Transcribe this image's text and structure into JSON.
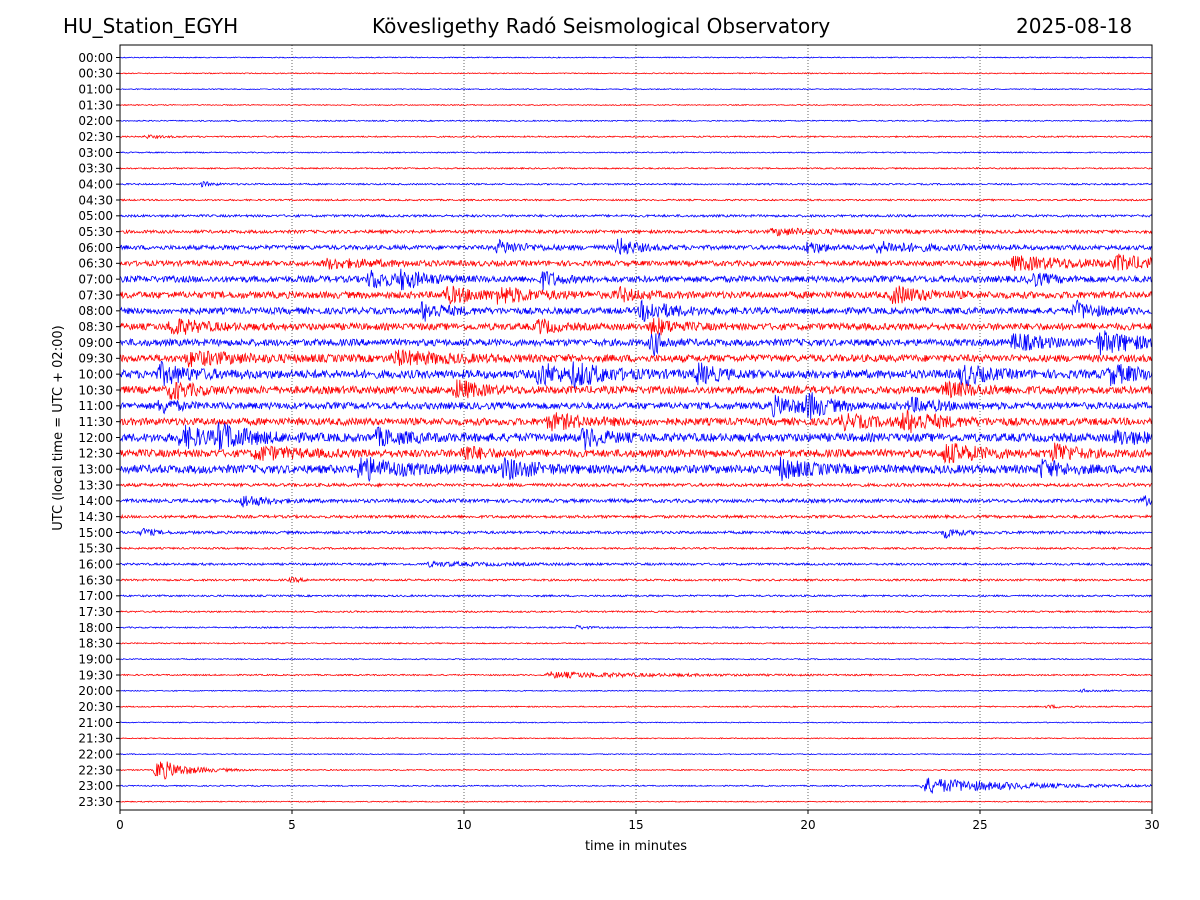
{
  "header": {
    "station": "HU_Station_EGYH",
    "title": "Kövesligethy Radó Seismological Observatory",
    "date": "2025-08-18"
  },
  "chart_data": {
    "type": "line",
    "title": "Kövesligethy Radó Seismological Observatory",
    "xlabel": "time in minutes",
    "ylabel": "UTC (local time = UTC + 02:00)",
    "xlim": [
      0,
      30
    ],
    "x_ticks": [
      "0",
      "5",
      "10",
      "15",
      "20",
      "25",
      "30"
    ],
    "grid": "vertical dotted at 5-minute intervals",
    "colors": {
      "even_rows": "#0000ff",
      "odd_rows": "#ff0000"
    },
    "rows": [
      {
        "label": "00:00",
        "noise": 0.5,
        "events": []
      },
      {
        "label": "00:30",
        "noise": 0.5,
        "events": []
      },
      {
        "label": "01:00",
        "noise": 0.5,
        "events": []
      },
      {
        "label": "01:30",
        "noise": 0.5,
        "events": []
      },
      {
        "label": "02:00",
        "noise": 0.6,
        "events": []
      },
      {
        "label": "02:30",
        "noise": 0.7,
        "events": [
          {
            "t": 0.8,
            "amp": 1.5,
            "dur": 0.5
          }
        ]
      },
      {
        "label": "03:00",
        "noise": 0.6,
        "events": []
      },
      {
        "label": "03:30",
        "noise": 0.7,
        "events": []
      },
      {
        "label": "04:00",
        "noise": 0.8,
        "events": [
          {
            "t": 2.4,
            "amp": 2.5,
            "dur": 0.3
          }
        ]
      },
      {
        "label": "04:30",
        "noise": 0.8,
        "events": []
      },
      {
        "label": "05:00",
        "noise": 1.2,
        "events": []
      },
      {
        "label": "05:30",
        "noise": 1.6,
        "events": [
          {
            "t": 19,
            "amp": 3,
            "dur": 2
          }
        ]
      },
      {
        "label": "06:00",
        "noise": 2.2,
        "events": [
          {
            "t": 11,
            "amp": 6,
            "dur": 0.8
          },
          {
            "t": 14.5,
            "amp": 9,
            "dur": 0.5
          },
          {
            "t": 20,
            "amp": 6,
            "dur": 0.5
          },
          {
            "t": 22,
            "amp": 5,
            "dur": 1.5
          }
        ]
      },
      {
        "label": "06:30",
        "noise": 2.6,
        "events": [
          {
            "t": 6,
            "amp": 4,
            "dur": 1.5
          },
          {
            "t": 26,
            "amp": 6,
            "dur": 2
          },
          {
            "t": 29,
            "amp": 6,
            "dur": 1
          }
        ]
      },
      {
        "label": "07:00",
        "noise": 3.2,
        "events": [
          {
            "t": 7.3,
            "amp": 9,
            "dur": 0.6
          },
          {
            "t": 8.2,
            "amp": 8,
            "dur": 0.6
          },
          {
            "t": 12.3,
            "amp": 8,
            "dur": 0.4
          },
          {
            "t": 26.5,
            "amp": 6,
            "dur": 0.5
          }
        ]
      },
      {
        "label": "07:30",
        "noise": 3.4,
        "events": [
          {
            "t": 9.5,
            "amp": 7,
            "dur": 1
          },
          {
            "t": 11,
            "amp": 6,
            "dur": 1
          },
          {
            "t": 14.5,
            "amp": 6,
            "dur": 0.5
          },
          {
            "t": 22.5,
            "amp": 8,
            "dur": 0.8
          }
        ]
      },
      {
        "label": "08:00",
        "noise": 3.2,
        "events": [
          {
            "t": 8.8,
            "amp": 9,
            "dur": 0.6
          },
          {
            "t": 15.2,
            "amp": 10,
            "dur": 0.8
          },
          {
            "t": 27.8,
            "amp": 8,
            "dur": 0.6
          }
        ]
      },
      {
        "label": "08:30",
        "noise": 3.4,
        "events": [
          {
            "t": 1.5,
            "amp": 8,
            "dur": 0.8
          },
          {
            "t": 12.2,
            "amp": 7,
            "dur": 0.4
          },
          {
            "t": 15.5,
            "amp": 8,
            "dur": 0.6
          }
        ]
      },
      {
        "label": "09:00",
        "noise": 3.4,
        "events": [
          {
            "t": 15.5,
            "amp": 12,
            "dur": 0.3
          },
          {
            "t": 26,
            "amp": 8,
            "dur": 0.8
          },
          {
            "t": 28.5,
            "amp": 10,
            "dur": 1.2
          }
        ]
      },
      {
        "label": "09:30",
        "noise": 3.6,
        "events": [
          {
            "t": 2,
            "amp": 6,
            "dur": 1.5
          },
          {
            "t": 8,
            "amp": 6,
            "dur": 1.5
          }
        ]
      },
      {
        "label": "10:00",
        "noise": 4.2,
        "events": [
          {
            "t": 1.2,
            "amp": 9,
            "dur": 0.8
          },
          {
            "t": 12.2,
            "amp": 11,
            "dur": 0.6
          },
          {
            "t": 13.2,
            "amp": 9,
            "dur": 1
          },
          {
            "t": 16.8,
            "amp": 9,
            "dur": 0.5
          },
          {
            "t": 24.5,
            "amp": 10,
            "dur": 0.6
          },
          {
            "t": 28.8,
            "amp": 8,
            "dur": 1
          }
        ]
      },
      {
        "label": "10:30",
        "noise": 3.8,
        "events": [
          {
            "t": 1.5,
            "amp": 8,
            "dur": 0.6
          },
          {
            "t": 9.8,
            "amp": 9,
            "dur": 0.6
          },
          {
            "t": 24,
            "amp": 6,
            "dur": 1
          }
        ]
      },
      {
        "label": "11:00",
        "noise": 3.4,
        "events": [
          {
            "t": 1.2,
            "amp": 7,
            "dur": 0.4
          },
          {
            "t": 19,
            "amp": 8,
            "dur": 1
          },
          {
            "t": 20,
            "amp": 10,
            "dur": 0.5
          },
          {
            "t": 23,
            "amp": 6,
            "dur": 0.8
          }
        ]
      },
      {
        "label": "11:30",
        "noise": 3.6,
        "events": [
          {
            "t": 12.5,
            "amp": 7,
            "dur": 1
          },
          {
            "t": 21,
            "amp": 6,
            "dur": 1
          },
          {
            "t": 22.8,
            "amp": 9,
            "dur": 1
          }
        ]
      },
      {
        "label": "12:00",
        "noise": 4.2,
        "events": [
          {
            "t": 1.8,
            "amp": 10,
            "dur": 0.8
          },
          {
            "t": 2.9,
            "amp": 11,
            "dur": 0.8
          },
          {
            "t": 7.5,
            "amp": 7,
            "dur": 0.8
          },
          {
            "t": 13.5,
            "amp": 9,
            "dur": 0.6
          },
          {
            "t": 29,
            "amp": 6,
            "dur": 0.8
          }
        ]
      },
      {
        "label": "12:30",
        "noise": 3.8,
        "events": [
          {
            "t": 4,
            "amp": 6,
            "dur": 1
          },
          {
            "t": 10,
            "amp": 7,
            "dur": 0.5
          },
          {
            "t": 24,
            "amp": 9,
            "dur": 1
          },
          {
            "t": 27.2,
            "amp": 10,
            "dur": 0.5
          }
        ]
      },
      {
        "label": "13:00",
        "noise": 4.2,
        "events": [
          {
            "t": 7,
            "amp": 11,
            "dur": 1
          },
          {
            "t": 11.2,
            "amp": 9,
            "dur": 0.8
          },
          {
            "t": 19.2,
            "amp": 9,
            "dur": 0.8
          },
          {
            "t": 26.8,
            "amp": 8,
            "dur": 0.6
          }
        ]
      },
      {
        "label": "13:30",
        "noise": 1.6,
        "events": []
      },
      {
        "label": "14:00",
        "noise": 1.8,
        "events": [
          {
            "t": 3.6,
            "amp": 6,
            "dur": 0.6
          },
          {
            "t": 29.8,
            "amp": 4,
            "dur": 0.2
          }
        ]
      },
      {
        "label": "14:30",
        "noise": 1.4,
        "events": []
      },
      {
        "label": "15:00",
        "noise": 1.4,
        "events": [
          {
            "t": 0.7,
            "amp": 4,
            "dur": 0.3
          },
          {
            "t": 24,
            "amp": 5,
            "dur": 0.4
          }
        ]
      },
      {
        "label": "15:30",
        "noise": 0.9,
        "events": []
      },
      {
        "label": "16:00",
        "noise": 1.1,
        "events": [
          {
            "t": 9,
            "amp": 2,
            "dur": 2
          }
        ]
      },
      {
        "label": "16:30",
        "noise": 1.0,
        "events": [
          {
            "t": 5,
            "amp": 2,
            "dur": 0.3
          }
        ]
      },
      {
        "label": "17:00",
        "noise": 0.9,
        "events": []
      },
      {
        "label": "17:30",
        "noise": 0.8,
        "events": []
      },
      {
        "label": "18:00",
        "noise": 0.7,
        "events": [
          {
            "t": 13.3,
            "amp": 2,
            "dur": 0.3
          }
        ]
      },
      {
        "label": "18:30",
        "noise": 0.6,
        "events": []
      },
      {
        "label": "19:00",
        "noise": 0.6,
        "events": []
      },
      {
        "label": "19:30",
        "noise": 0.7,
        "events": [
          {
            "t": 12.5,
            "amp": 3,
            "dur": 3
          }
        ]
      },
      {
        "label": "20:00",
        "noise": 0.5,
        "events": [
          {
            "t": 28,
            "amp": 1.5,
            "dur": 0.5
          }
        ]
      },
      {
        "label": "20:30",
        "noise": 0.6,
        "events": [
          {
            "t": 27,
            "amp": 1.5,
            "dur": 0.5
          }
        ]
      },
      {
        "label": "21:00",
        "noise": 0.5,
        "events": []
      },
      {
        "label": "21:30",
        "noise": 0.5,
        "events": []
      },
      {
        "label": "22:00",
        "noise": 0.5,
        "events": []
      },
      {
        "label": "22:30",
        "noise": 0.6,
        "events": [
          {
            "t": 1.1,
            "amp": 11,
            "dur": 0.8
          }
        ]
      },
      {
        "label": "23:00",
        "noise": 0.6,
        "events": [
          {
            "t": 23.4,
            "amp": 8,
            "dur": 2.5
          }
        ]
      },
      {
        "label": "23:30",
        "noise": 0.5,
        "events": []
      }
    ]
  }
}
